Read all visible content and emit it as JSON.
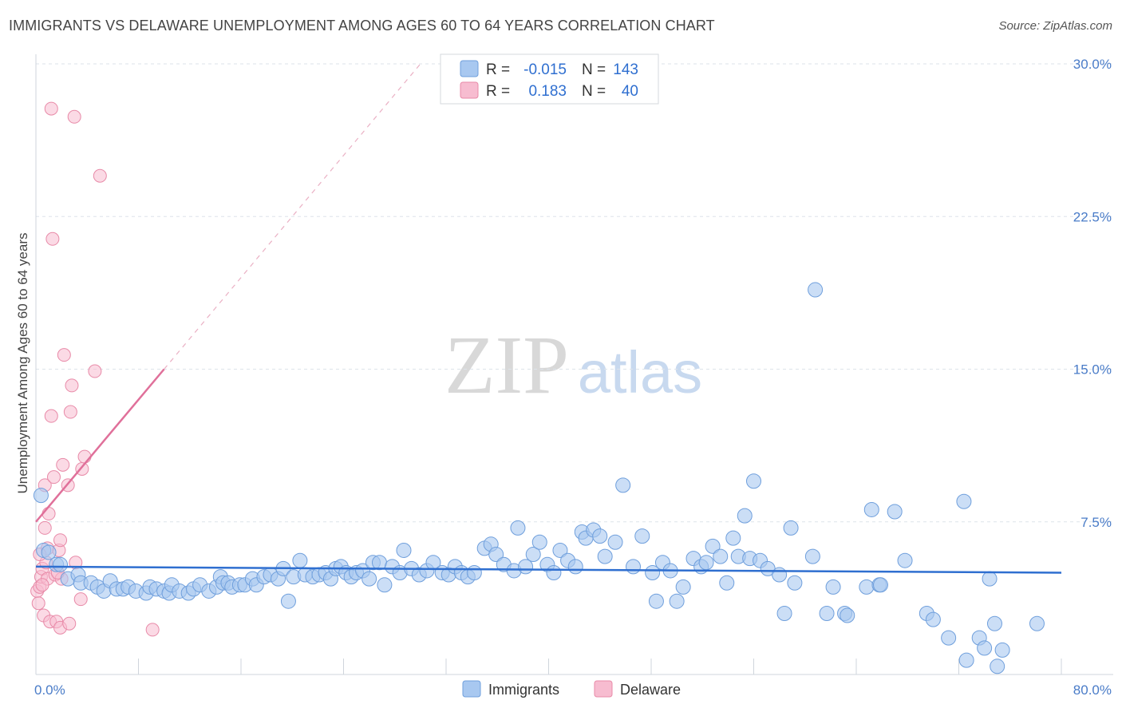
{
  "title": "IMMIGRANTS VS DELAWARE UNEMPLOYMENT AMONG AGES 60 TO 64 YEARS CORRELATION CHART",
  "source": "Source: ZipAtlas.com",
  "watermark": {
    "zip": "ZIP",
    "atlas": "atlas"
  },
  "colors": {
    "immigrants_fill": "#a8c8f0",
    "immigrants_stroke": "#6f9fdc",
    "immigrants_line": "#2f6fd0",
    "delaware_fill": "#f7bcd0",
    "delaware_stroke": "#e88aa8",
    "delaware_line": "#e0709a",
    "grid": "#dde3ea",
    "tick_text": "#4a7cc8"
  },
  "legend": {
    "rows": [
      {
        "r_label": "R =",
        "r_value": "-0.015",
        "n_label": "N =",
        "n_value": "143"
      },
      {
        "r_label": "R =",
        "r_value": "0.183",
        "n_label": "N =",
        "n_value": "40"
      }
    ]
  },
  "chart_data": {
    "type": "scatter",
    "title": "IMMIGRANTS VS DELAWARE UNEMPLOYMENT AMONG AGES 60 TO 64 YEARS CORRELATION CHART",
    "xlabel": "",
    "ylabel": "Unemployment Among Ages 60 to 64 years",
    "xlim": [
      0,
      80
    ],
    "ylim": [
      0,
      31
    ],
    "x_tick_labels": [
      "0.0%",
      "80.0%"
    ],
    "y_ticks": [
      {
        "value": 7.5,
        "label": "7.5%"
      },
      {
        "value": 15,
        "label": "15.0%"
      },
      {
        "value": 22.5,
        "label": "22.5%"
      },
      {
        "value": 30,
        "label": "30.0%"
      }
    ],
    "legend_entries": [
      "Immigrants",
      "Delaware"
    ],
    "series": [
      {
        "name": "Immigrants",
        "trend": {
          "x0": 0,
          "y0": 5.3,
          "x1": 80,
          "y1": 5.0
        },
        "points": [
          [
            0.4,
            8.8
          ],
          [
            0.6,
            6.1
          ],
          [
            1.0,
            6.0
          ],
          [
            1.6,
            5.4
          ],
          [
            1.9,
            5.4
          ],
          [
            2.5,
            4.7
          ],
          [
            3.3,
            4.9
          ],
          [
            3.5,
            4.5
          ],
          [
            4.3,
            4.5
          ],
          [
            4.8,
            4.3
          ],
          [
            5.3,
            4.1
          ],
          [
            5.8,
            4.6
          ],
          [
            6.3,
            4.2
          ],
          [
            6.8,
            4.2
          ],
          [
            7.2,
            4.3
          ],
          [
            7.8,
            4.1
          ],
          [
            8.6,
            4.0
          ],
          [
            8.9,
            4.3
          ],
          [
            9.4,
            4.2
          ],
          [
            10.0,
            4.1
          ],
          [
            10.4,
            4.0
          ],
          [
            10.6,
            4.4
          ],
          [
            11.2,
            4.1
          ],
          [
            11.9,
            4.0
          ],
          [
            12.3,
            4.2
          ],
          [
            12.8,
            4.4
          ],
          [
            13.5,
            4.1
          ],
          [
            14.1,
            4.3
          ],
          [
            14.4,
            4.8
          ],
          [
            14.6,
            4.5
          ],
          [
            15.0,
            4.5
          ],
          [
            15.3,
            4.3
          ],
          [
            15.9,
            4.4
          ],
          [
            16.3,
            4.4
          ],
          [
            16.9,
            4.7
          ],
          [
            17.2,
            4.4
          ],
          [
            17.8,
            4.8
          ],
          [
            18.3,
            4.9
          ],
          [
            18.9,
            4.7
          ],
          [
            19.3,
            5.2
          ],
          [
            19.7,
            3.6
          ],
          [
            20.1,
            4.8
          ],
          [
            20.6,
            5.6
          ],
          [
            21.0,
            4.9
          ],
          [
            21.6,
            4.8
          ],
          [
            22.1,
            4.9
          ],
          [
            22.6,
            5.0
          ],
          [
            23.0,
            4.7
          ],
          [
            23.4,
            5.2
          ],
          [
            23.8,
            5.3
          ],
          [
            24.2,
            5.0
          ],
          [
            24.6,
            4.8
          ],
          [
            25.0,
            5.0
          ],
          [
            25.5,
            5.1
          ],
          [
            26.0,
            4.7
          ],
          [
            26.3,
            5.5
          ],
          [
            26.8,
            5.5
          ],
          [
            27.2,
            4.4
          ],
          [
            27.8,
            5.3
          ],
          [
            28.4,
            5.0
          ],
          [
            28.7,
            6.1
          ],
          [
            29.3,
            5.2
          ],
          [
            29.9,
            4.9
          ],
          [
            30.5,
            5.1
          ],
          [
            31.0,
            5.5
          ],
          [
            31.7,
            5.0
          ],
          [
            32.2,
            4.9
          ],
          [
            32.7,
            5.3
          ],
          [
            33.2,
            5.0
          ],
          [
            33.7,
            4.8
          ],
          [
            34.2,
            5.0
          ],
          [
            35.0,
            6.2
          ],
          [
            35.5,
            6.4
          ],
          [
            35.9,
            5.9
          ],
          [
            36.5,
            5.4
          ],
          [
            37.3,
            5.1
          ],
          [
            37.6,
            7.2
          ],
          [
            38.2,
            5.3
          ],
          [
            38.8,
            5.9
          ],
          [
            39.3,
            6.5
          ],
          [
            39.9,
            5.4
          ],
          [
            40.4,
            5.0
          ],
          [
            40.9,
            6.1
          ],
          [
            41.5,
            5.6
          ],
          [
            42.1,
            5.3
          ],
          [
            42.6,
            7.0
          ],
          [
            42.9,
            6.7
          ],
          [
            43.5,
            7.1
          ],
          [
            44.0,
            6.8
          ],
          [
            44.4,
            5.8
          ],
          [
            45.2,
            6.5
          ],
          [
            45.8,
            9.3
          ],
          [
            46.6,
            5.3
          ],
          [
            47.3,
            6.8
          ],
          [
            48.1,
            5.0
          ],
          [
            48.4,
            3.6
          ],
          [
            48.9,
            5.5
          ],
          [
            49.5,
            5.1
          ],
          [
            50.0,
            3.6
          ],
          [
            50.5,
            4.3
          ],
          [
            51.3,
            5.7
          ],
          [
            51.9,
            5.3
          ],
          [
            52.3,
            5.5
          ],
          [
            52.8,
            6.3
          ],
          [
            53.4,
            5.8
          ],
          [
            53.9,
            4.5
          ],
          [
            54.4,
            6.7
          ],
          [
            54.8,
            5.8
          ],
          [
            55.3,
            7.8
          ],
          [
            55.7,
            5.7
          ],
          [
            56.0,
            9.5
          ],
          [
            56.5,
            5.6
          ],
          [
            57.1,
            5.2
          ],
          [
            58.0,
            4.9
          ],
          [
            58.4,
            3.0
          ],
          [
            58.9,
            7.2
          ],
          [
            59.2,
            4.5
          ],
          [
            60.8,
            18.9
          ],
          [
            60.6,
            5.8
          ],
          [
            61.7,
            3.0
          ],
          [
            62.2,
            4.3
          ],
          [
            63.1,
            3.0
          ],
          [
            63.3,
            2.9
          ],
          [
            64.8,
            4.3
          ],
          [
            65.2,
            8.1
          ],
          [
            65.8,
            4.4
          ],
          [
            65.9,
            4.4
          ],
          [
            67.0,
            8.0
          ],
          [
            67.8,
            5.6
          ],
          [
            69.5,
            3.0
          ],
          [
            70.0,
            2.7
          ],
          [
            71.2,
            1.8
          ],
          [
            72.4,
            8.5
          ],
          [
            72.6,
            0.7
          ],
          [
            73.6,
            1.8
          ],
          [
            74.0,
            1.3
          ],
          [
            74.4,
            4.7
          ],
          [
            74.8,
            2.5
          ],
          [
            75.0,
            0.4
          ],
          [
            75.4,
            1.2
          ],
          [
            78.1,
            2.5
          ]
        ]
      },
      {
        "name": "Delaware",
        "trend": {
          "x0": 0,
          "y0": 7.5,
          "x1": 10,
          "y1": 15.0,
          "ext_x1": 30,
          "ext_y1": 30.0
        },
        "points": [
          [
            0.1,
            4.1
          ],
          [
            0.2,
            3.5
          ],
          [
            0.3,
            4.3
          ],
          [
            0.4,
            4.8
          ],
          [
            0.5,
            5.2
          ],
          [
            0.6,
            2.9
          ],
          [
            0.7,
            7.2
          ],
          [
            0.7,
            9.3
          ],
          [
            0.8,
            5.5
          ],
          [
            0.9,
            4.7
          ],
          [
            0.9,
            6.2
          ],
          [
            1.0,
            7.9
          ],
          [
            1.1,
            2.6
          ],
          [
            1.2,
            12.7
          ],
          [
            1.2,
            27.8
          ],
          [
            1.3,
            21.4
          ],
          [
            1.4,
            9.7
          ],
          [
            1.5,
            4.9
          ],
          [
            1.6,
            2.6
          ],
          [
            1.8,
            6.1
          ],
          [
            1.9,
            6.6
          ],
          [
            1.9,
            2.3
          ],
          [
            2.0,
            4.7
          ],
          [
            2.1,
            10.3
          ],
          [
            2.2,
            15.7
          ],
          [
            2.5,
            9.3
          ],
          [
            2.6,
            2.5
          ],
          [
            2.7,
            12.9
          ],
          [
            2.8,
            14.2
          ],
          [
            3.0,
            27.4
          ],
          [
            3.1,
            5.5
          ],
          [
            3.5,
            3.7
          ],
          [
            3.6,
            10.1
          ],
          [
            3.8,
            10.7
          ],
          [
            4.6,
            14.9
          ],
          [
            5.0,
            24.5
          ],
          [
            9.1,
            2.2
          ],
          [
            0.3,
            5.9
          ],
          [
            0.5,
            4.4
          ],
          [
            1.7,
            5.0
          ]
        ]
      }
    ]
  }
}
